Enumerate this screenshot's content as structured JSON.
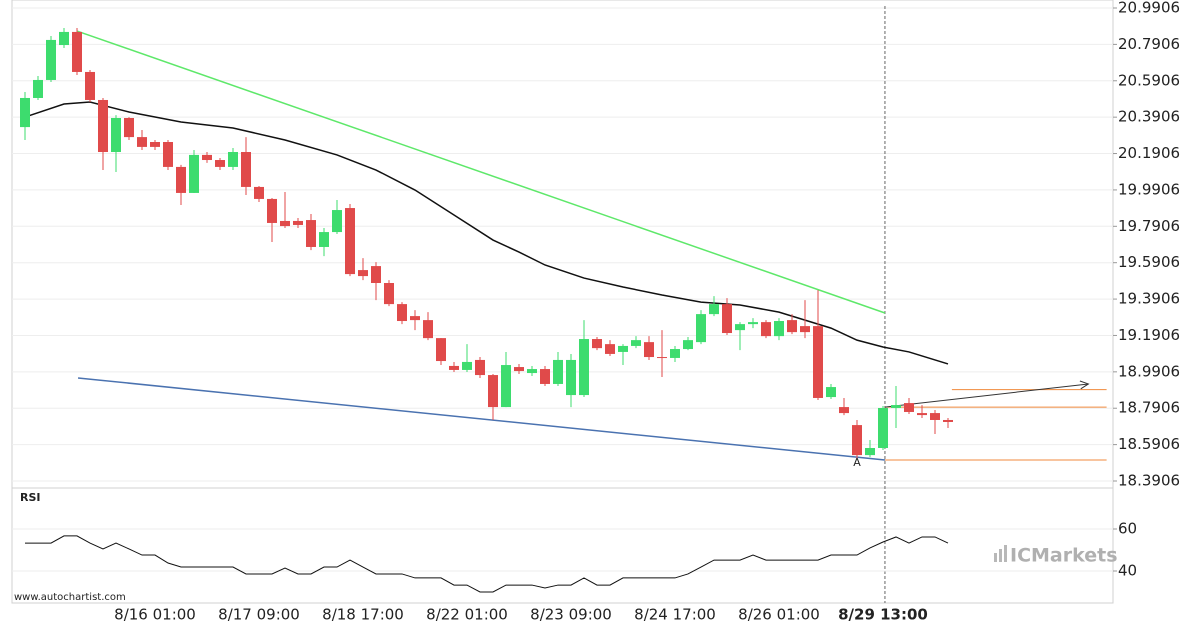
{
  "chart_data": [
    {
      "type": "candlestick",
      "categories": [
        null,
        null,
        null,
        null,
        null,
        null,
        null,
        null,
        null,
        null,
        "8/16 01:00",
        null,
        null,
        null,
        null,
        null,
        null,
        null,
        "8/17 09:00",
        null,
        null,
        null,
        null,
        null,
        null,
        null,
        "8/18 17:00",
        null,
        null,
        null,
        null,
        null,
        null,
        null,
        "8/22 01:00",
        null,
        null,
        null,
        null,
        null,
        null,
        null,
        "8/23 09:00",
        null,
        null,
        null,
        null,
        null,
        null,
        null,
        "8/24 17:00",
        null,
        null,
        null,
        null,
        null,
        null,
        null,
        "8/26 01:00",
        null,
        null,
        null,
        null,
        null,
        null,
        null,
        "8/29 13:00",
        null,
        null,
        null,
        null,
        null
      ],
      "open": [
        20.336,
        20.496,
        20.595,
        20.787,
        20.859,
        20.639,
        20.485,
        20.199,
        20.386,
        20.281,
        20.254,
        20.254,
        20.117,
        19.974,
        20.183,
        20.155,
        20.117,
        20.199,
        20.007,
        19.941,
        19.82,
        19.82,
        19.825,
        19.677,
        19.759,
        19.891,
        19.55,
        19.572,
        19.479,
        19.363,
        19.297,
        19.275,
        19.176,
        19.023,
        19.001,
        19.056,
        18.973,
        18.797,
        19.017,
        18.984,
        19.006,
        18.924,
        18.863,
        18.863,
        19.171,
        19.143,
        19.1,
        19.133,
        19.154,
        19.072,
        19.067,
        19.116,
        19.154,
        19.308,
        19.363,
        19.22,
        19.253,
        19.264,
        19.187,
        19.275,
        19.242,
        19.242,
        18.852,
        18.797,
        18.698,
        18.533,
        18.572,
        18.792,
        18.819,
        18.764,
        18.764,
        18.726
      ],
      "high": [
        20.529,
        20.617,
        20.837,
        20.881,
        20.881,
        20.65,
        20.496,
        20.402,
        20.391,
        20.32,
        20.265,
        20.265,
        20.128,
        20.21,
        20.199,
        20.166,
        20.221,
        20.281,
        20.012,
        19.946,
        19.979,
        19.836,
        19.858,
        19.781,
        19.935,
        19.913,
        19.616,
        19.594,
        19.495,
        19.374,
        19.33,
        19.319,
        19.176,
        19.045,
        19.143,
        19.072,
        18.979,
        19.1,
        19.034,
        19.023,
        19.023,
        19.1,
        19.089,
        19.275,
        19.182,
        19.165,
        19.143,
        19.187,
        19.187,
        19.22,
        19.133,
        19.182,
        19.33,
        19.407,
        19.396,
        19.264,
        19.286,
        19.275,
        19.286,
        19.308,
        19.385,
        19.44,
        18.924,
        18.847,
        18.726,
        18.616,
        18.803,
        18.913,
        18.847,
        18.808,
        18.781,
        18.737
      ],
      "low": [
        20.265,
        20.485,
        20.584,
        20.771,
        20.622,
        20.474,
        20.1,
        20.089,
        20.265,
        20.21,
        20.21,
        20.1,
        19.908,
        19.974,
        20.139,
        20.1,
        20.1,
        19.963,
        19.924,
        19.704,
        19.781,
        19.781,
        19.66,
        19.627,
        19.748,
        19.517,
        19.495,
        19.385,
        19.352,
        19.253,
        19.22,
        19.165,
        19.028,
        18.99,
        18.99,
        18.957,
        18.726,
        18.797,
        18.979,
        18.968,
        18.913,
        18.913,
        18.797,
        18.852,
        19.11,
        19.078,
        19.028,
        19.121,
        19.056,
        18.962,
        19.045,
        19.11,
        19.143,
        19.297,
        19.193,
        19.11,
        19.231,
        19.176,
        19.165,
        19.198,
        19.176,
        18.836,
        18.841,
        18.753,
        18.517,
        18.522,
        18.561,
        18.682,
        18.759,
        18.737,
        18.649,
        18.682
      ],
      "close": [
        20.496,
        20.595,
        20.815,
        20.859,
        20.639,
        20.485,
        20.199,
        20.386,
        20.281,
        20.227,
        20.227,
        20.117,
        19.974,
        20.183,
        20.155,
        20.117,
        20.199,
        20.007,
        19.941,
        19.809,
        19.792,
        19.798,
        19.677,
        19.759,
        19.88,
        19.528,
        19.517,
        19.479,
        19.363,
        19.27,
        19.275,
        19.176,
        19.05,
        19.001,
        19.045,
        18.973,
        18.797,
        19.028,
        18.995,
        19.006,
        18.924,
        19.056,
        19.056,
        19.171,
        19.121,
        19.089,
        19.133,
        19.165,
        19.072,
        19.067,
        19.116,
        19.165,
        19.308,
        19.363,
        19.204,
        19.253,
        19.264,
        19.187,
        19.27,
        19.209,
        19.209,
        18.847,
        18.907,
        18.764,
        18.533,
        18.572,
        18.792,
        18.808,
        18.77,
        18.753,
        18.726,
        18.715
      ],
      "up_color": "#3ddc6e",
      "down_color": "#e04a4a",
      "ylim": [
        18.3906,
        20.9906
      ],
      "yticks": [
        20.9906,
        20.7906,
        20.5906,
        20.3906,
        20.1906,
        19.9906,
        19.7906,
        19.5906,
        19.3906,
        19.1906,
        18.9906,
        18.7906,
        18.5906,
        18.3906
      ],
      "grid": true,
      "lines": [
        {
          "x": [
            0,
            3,
            5,
            8,
            12,
            16,
            20,
            24,
            27,
            30,
            33,
            36,
            38,
            40,
            43,
            46,
            49,
            52,
            55,
            58,
            60,
            62,
            64,
            66,
            68,
            71
          ],
          "values": [
            20.391,
            20.463,
            20.474,
            20.419,
            20.364,
            20.331,
            20.265,
            20.183,
            20.1,
            19.99,
            19.853,
            19.715,
            19.649,
            19.578,
            19.506,
            19.457,
            19.413,
            19.374,
            19.358,
            19.319,
            19.275,
            19.231,
            19.165,
            19.127,
            19.1,
            19.034
          ],
          "color": "#111111"
        },
        {
          "x": [
            4,
            66.15
          ],
          "values": [
            20.864,
            19.314
          ],
          "color": "#5ee86a"
        },
        {
          "x": [
            4.08,
            66.15
          ],
          "values": [
            18.957,
            18.506
          ],
          "color": "#4a72b0"
        },
        {
          "x": [
            66.15,
            81.8
          ],
          "values": [
            18.797,
            18.924
          ],
          "color": "#333333",
          "arrow": true
        }
      ],
      "levels": [
        {
          "value": 18.893,
          "x": [
            71.3,
            83.2
          ],
          "color": "#f08a3c"
        },
        {
          "value": 18.797,
          "x": [
            66.15,
            83.2
          ],
          "color": "#f08a3c"
        },
        {
          "value": 18.506,
          "x": [
            66.15,
            83.2
          ],
          "color": "#f08a3c"
        }
      ],
      "marker_x": 66.15,
      "annotations": [
        {
          "text": "A",
          "x": 64,
          "y": 18.489,
          "color": "#f08a3c"
        }
      ],
      "source": "www.autochartist.com",
      "watermark": "ICMarkets"
    },
    {
      "type": "line",
      "title": "RSI",
      "values": [
        53.3,
        53.3,
        53.3,
        56.7,
        56.7,
        53.3,
        50.5,
        53.3,
        50.5,
        47.6,
        47.6,
        43.8,
        41.9,
        41.9,
        41.9,
        41.9,
        41.9,
        38.6,
        38.6,
        38.6,
        41.4,
        38.6,
        38.6,
        41.9,
        41.9,
        45.2,
        41.9,
        38.6,
        38.6,
        38.6,
        36.7,
        36.7,
        36.7,
        33.3,
        33.3,
        30.0,
        30.0,
        33.3,
        33.3,
        33.3,
        31.9,
        33.3,
        33.3,
        36.7,
        33.3,
        33.3,
        36.7,
        36.7,
        36.7,
        36.7,
        36.7,
        38.6,
        41.9,
        45.2,
        45.2,
        45.2,
        47.6,
        45.2,
        45.2,
        45.2,
        45.2,
        45.2,
        47.6,
        47.6,
        47.6,
        51.0,
        53.8,
        56.2,
        53.3,
        56.2,
        56.2,
        53.3
      ],
      "color": "#111111",
      "ylim": [
        25,
        78
      ],
      "yticks": [
        60,
        40
      ],
      "grid": true
    }
  ]
}
